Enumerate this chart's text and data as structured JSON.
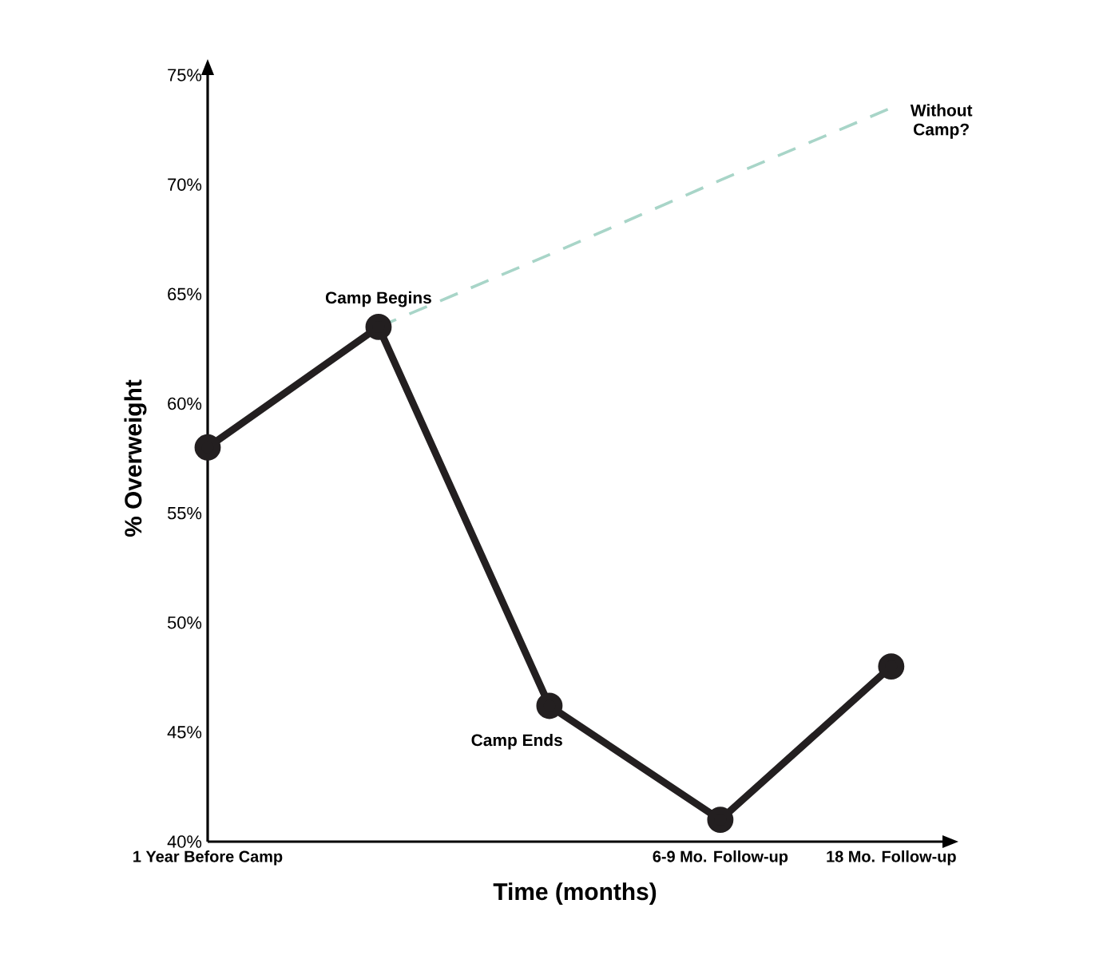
{
  "chart_data": {
    "type": "line",
    "xlabel": "Time (months)",
    "ylabel": "% Overweight",
    "categories": [
      "1 Year Before Camp",
      null,
      null,
      "6-9 Mo. Follow-up",
      "18 Mo. Follow-up"
    ],
    "ylim": [
      40,
      75
    ],
    "yticks": [
      {
        "value": 40,
        "label": "40%"
      },
      {
        "value": 45,
        "label": "45%"
      },
      {
        "value": 50,
        "label": "50%"
      },
      {
        "value": 55,
        "label": "55%"
      },
      {
        "value": 60,
        "label": "60%"
      },
      {
        "value": 65,
        "label": "65%"
      },
      {
        "value": 70,
        "label": "70%"
      },
      {
        "value": 75,
        "label": "75%"
      }
    ],
    "marker": "circle",
    "line_style": "solid",
    "grid": false,
    "series": [
      {
        "values": [
          58,
          63.5,
          46.2,
          41,
          48
        ],
        "color": "#231f20"
      },
      {
        "type": "line",
        "values": [
          null,
          63.5,
          66.8,
          70.2,
          73.5
        ],
        "color": "#a8d5c8",
        "marker": "none",
        "line_style": "dashed"
      }
    ],
    "annotations": [
      "Camp Begins",
      "Camp Ends",
      "Without Camp?"
    ]
  }
}
